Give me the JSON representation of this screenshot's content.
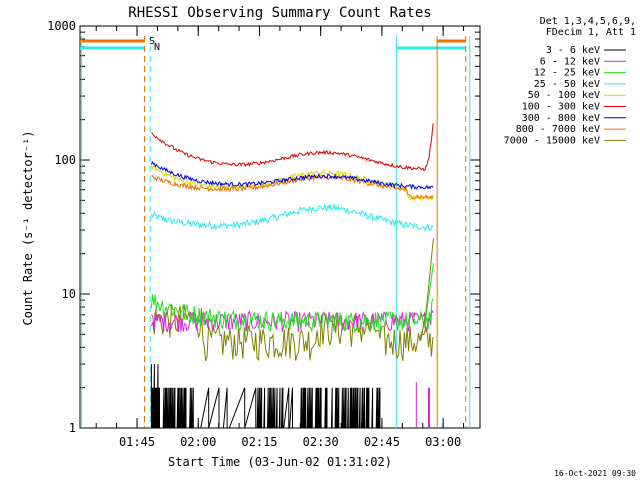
{
  "chart_data": {
    "type": "line",
    "title": "RHESSI Observing Summary Count Rates",
    "xlabel": "Start Time (03-Jun-02 01:31:02)",
    "ylabel": "Count Rate (s⁻¹ detector⁻¹)",
    "yscale": "log",
    "ylim": [
      1,
      1000
    ],
    "xlim_min": [
      0,
      98
    ],
    "x_units": "minutes since 01:31:02",
    "x_ticks": [
      {
        "label": "01:45",
        "min": 13.97
      },
      {
        "label": "02:00",
        "min": 28.97
      },
      {
        "label": "02:15",
        "min": 43.97
      },
      {
        "label": "02:30",
        "min": 58.97
      },
      {
        "label": "02:45",
        "min": 73.97
      },
      {
        "label": "03:00",
        "min": 88.97
      }
    ],
    "y_ticks": [
      {
        "label": "1",
        "value": 1
      },
      {
        "label": "10",
        "value": 10
      },
      {
        "label": "100",
        "value": 100
      },
      {
        "label": "1000",
        "value": 1000
      }
    ],
    "legend_header": [
      "Det 1,3,4,5,6,9,",
      "FDecim 1, Att 1"
    ],
    "legend_position": "top-right outside plot",
    "series": [
      {
        "name": "3 - 6 keV",
        "color": "#000000"
      },
      {
        "name": "6 - 12 keV",
        "color": "#e020e0"
      },
      {
        "name": "12 - 25 keV",
        "color": "#20e020"
      },
      {
        "name": "25 - 50 keV",
        "color": "#30e8f0"
      },
      {
        "name": "50 - 100 keV",
        "color": "#d8d800"
      },
      {
        "name": "100 - 300 keV",
        "color": "#e00000"
      },
      {
        "name": "300 - 800 keV",
        "color": "#0000e0"
      },
      {
        "name": "800 - 7000 keV",
        "color": "#f07000"
      },
      {
        "name": "7000 - 15000 keV",
        "color": "#808000"
      }
    ],
    "top_flags": [
      {
        "label": "S",
        "color": "#f07000"
      },
      {
        "label": "N",
        "color": "#30e8f0"
      }
    ],
    "timestamp": "16-Oct-2021 09:30"
  }
}
